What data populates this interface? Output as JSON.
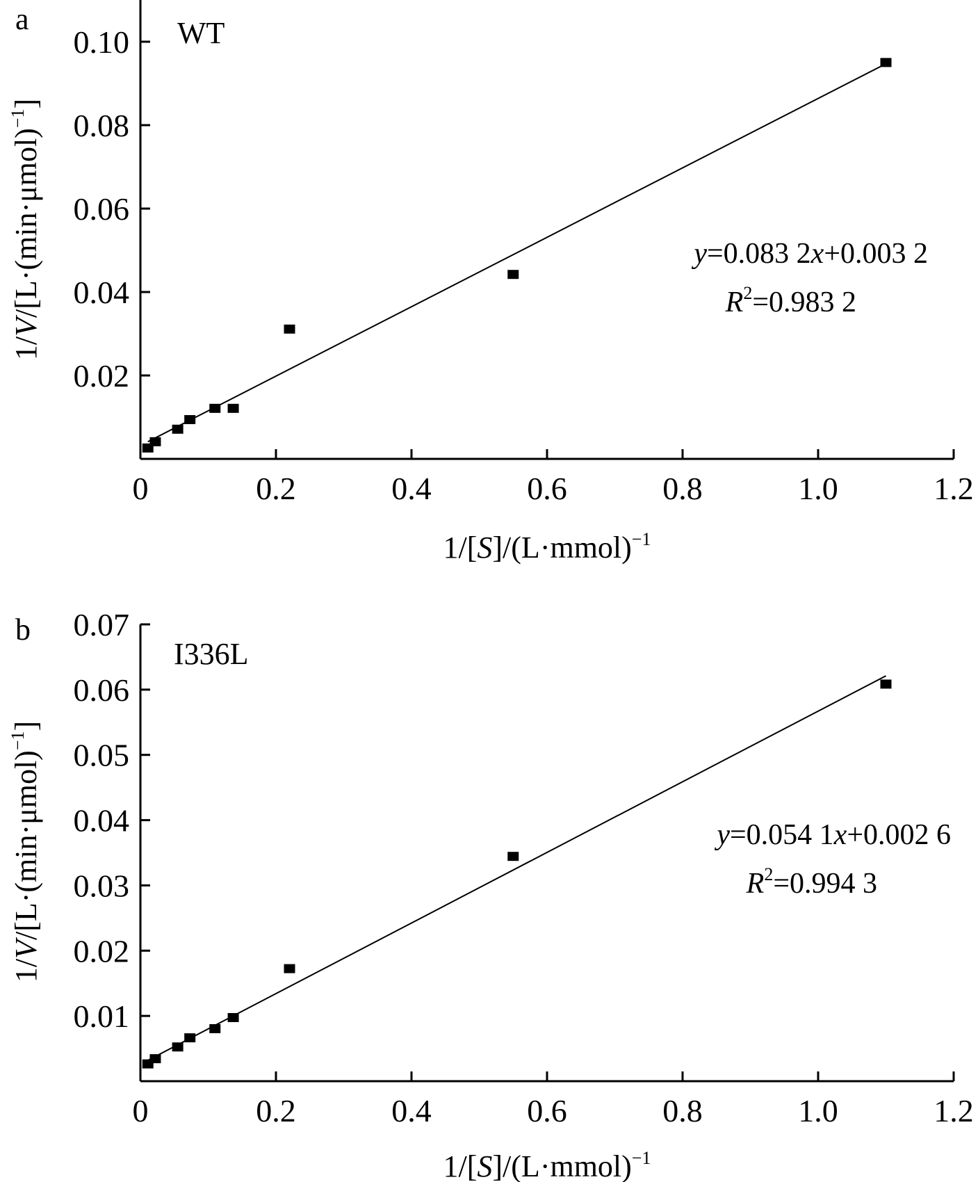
{
  "chart_data": [
    {
      "type": "scatter",
      "panel": "a",
      "label": "WT",
      "xlabel": {
        "pre": "1/[",
        "var": "S",
        "post": "]/(L·mmol)",
        "sup": "−1"
      },
      "ylabel": {
        "pre": "1/",
        "var": "V",
        "post": "/[L·(min·μmol)",
        "sup": "−1",
        "close": "]"
      },
      "xlim": [
        0,
        1.2
      ],
      "ylim": [
        0,
        0.11
      ],
      "xticks": [
        0,
        0.2,
        0.4,
        0.6,
        0.8,
        1.0,
        1.2
      ],
      "xtick_labels": [
        "0",
        "0.2",
        "0.4",
        "0.6",
        "0.8",
        "1.0",
        "1.2"
      ],
      "yticks": [
        0.02,
        0.04,
        0.06,
        0.08,
        0.1
      ],
      "ytick_labels": [
        "0.02",
        "0.04",
        "0.06",
        "0.08",
        "0.10"
      ],
      "points": [
        {
          "x": 0.011,
          "y": 0.0027
        },
        {
          "x": 0.022,
          "y": 0.0042
        },
        {
          "x": 0.055,
          "y": 0.0072
        },
        {
          "x": 0.073,
          "y": 0.0095
        },
        {
          "x": 0.11,
          "y": 0.0122
        },
        {
          "x": 0.137,
          "y": 0.0122
        },
        {
          "x": 0.22,
          "y": 0.0312
        },
        {
          "x": 0.55,
          "y": 0.0443
        },
        {
          "x": 1.1,
          "y": 0.0951
        }
      ],
      "fit": {
        "slope": 0.0832,
        "intercept": 0.0032,
        "x_range": [
          0.011,
          1.1
        ]
      },
      "equation": {
        "var": "y",
        "middle": "=0.083 2",
        "var2": "x",
        "tail": "+0.003 2"
      },
      "r2": {
        "var": "R",
        "sup": "2",
        "value": "=0.983 2"
      }
    },
    {
      "type": "scatter",
      "panel": "b",
      "label": "I336L",
      "xlabel": {
        "pre": "1/[",
        "var": "S",
        "post": "]/(L·mmol)",
        "sup": "−1"
      },
      "ylabel": {
        "pre": "1/",
        "var": "V",
        "post": "/[L·(min·μmol)",
        "sup": "−1",
        "close": "]"
      },
      "xlim": [
        0,
        1.2
      ],
      "ylim": [
        0,
        0.07
      ],
      "xticks": [
        0,
        0.2,
        0.4,
        0.6,
        0.8,
        1.0,
        1.2
      ],
      "xtick_labels": [
        "0",
        "0.2",
        "0.4",
        "0.6",
        "0.8",
        "1.0",
        "1.2"
      ],
      "yticks": [
        0.01,
        0.02,
        0.03,
        0.04,
        0.05,
        0.06,
        0.07
      ],
      "ytick_labels": [
        "0.01",
        "0.02",
        "0.03",
        "0.04",
        "0.05",
        "0.06",
        "0.07"
      ],
      "points": [
        {
          "x": 0.011,
          "y": 0.0027
        },
        {
          "x": 0.022,
          "y": 0.0035
        },
        {
          "x": 0.055,
          "y": 0.0053
        },
        {
          "x": 0.073,
          "y": 0.0067
        },
        {
          "x": 0.11,
          "y": 0.0081
        },
        {
          "x": 0.137,
          "y": 0.0098
        },
        {
          "x": 0.22,
          "y": 0.0173
        },
        {
          "x": 0.55,
          "y": 0.0345
        },
        {
          "x": 1.1,
          "y": 0.0609
        }
      ],
      "fit": {
        "slope": 0.0541,
        "intercept": 0.0026,
        "x_range": [
          0.011,
          1.1
        ]
      },
      "equation": {
        "var": "y",
        "middle": "=0.054 1",
        "var2": "x",
        "tail": "+0.002 6"
      },
      "r2": {
        "var": "R",
        "sup": "2",
        "value": "=0.994 3"
      }
    }
  ]
}
